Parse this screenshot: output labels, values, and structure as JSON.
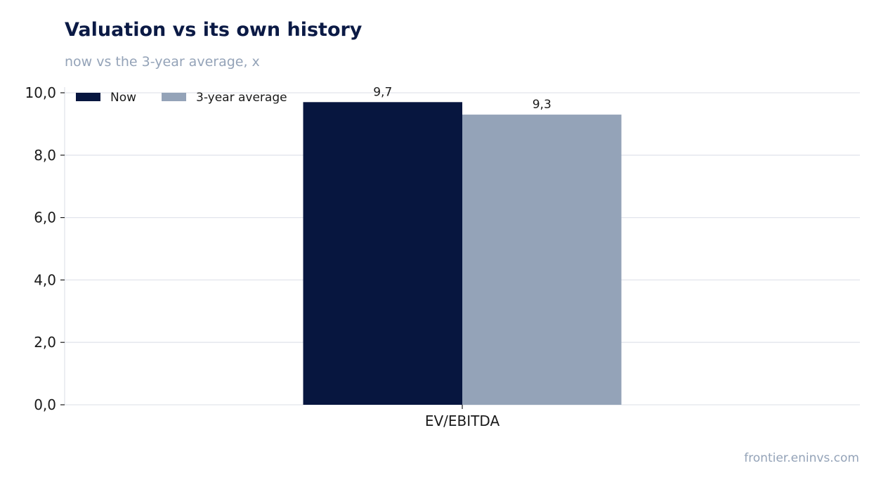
{
  "header": {
    "title": "Valuation vs its own history",
    "subtitle": "now vs the 3-year average, x"
  },
  "footer": {
    "source": "frontier.eninvs.com"
  },
  "colors": {
    "now": "#07163f",
    "average": "#94a3b8",
    "grid": "#e2e5ec"
  },
  "chart_data": {
    "type": "bar",
    "title": "Valuation vs its own history",
    "subtitle": "now vs the 3-year average, x",
    "categories": [
      "EV/EBITDA"
    ],
    "series": [
      {
        "name": "Now",
        "values": [
          9.7
        ],
        "value_labels": [
          "9,7"
        ],
        "color": "#07163f"
      },
      {
        "name": "3-year average",
        "values": [
          9.3
        ],
        "value_labels": [
          "9,3"
        ],
        "color": "#94a3b8"
      }
    ],
    "xlabel": "",
    "ylabel": "",
    "ylim": [
      0,
      10
    ],
    "yticks": [
      0,
      2,
      4,
      6,
      8,
      10
    ],
    "ytick_labels": [
      "0,0",
      "2,0",
      "4,0",
      "6,0",
      "8,0",
      "10,0"
    ],
    "grid": true,
    "legend": "top-left"
  }
}
